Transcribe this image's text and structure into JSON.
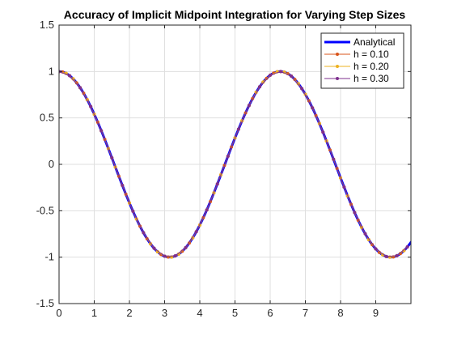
{
  "chart_data": {
    "type": "line",
    "title": "Accuracy of Implicit Midpoint Integration for Varying Step Sizes",
    "xlabel": "",
    "ylabel": "",
    "xlim": [
      0,
      10
    ],
    "ylim": [
      -1.5,
      1.5
    ],
    "xticks": [
      0,
      1,
      2,
      3,
      4,
      5,
      6,
      7,
      8,
      9
    ],
    "yticks": [
      -1.5,
      -1,
      -0.5,
      0,
      0.5,
      1,
      1.5
    ],
    "xtick_labels": [
      "0",
      "1",
      "2",
      "3",
      "4",
      "5",
      "6",
      "7",
      "8",
      "9"
    ],
    "ytick_labels": [
      "-1.5",
      "-1",
      "-0.5",
      "0",
      "0.5",
      "1",
      "1.5"
    ],
    "grid": true,
    "legend_position": "top-right",
    "series": [
      {
        "name": "Analytical",
        "color": "#0000ff",
        "marker": "none",
        "x": [
          0,
          0.5,
          1,
          1.5,
          2,
          2.5,
          3,
          3.1416,
          3.5,
          4,
          4.5,
          5,
          5.5,
          6,
          6.2832,
          6.5,
          7,
          7.5,
          8,
          8.5,
          9,
          9.4248,
          10
        ],
        "y": [
          1,
          0.878,
          0.54,
          0.071,
          -0.416,
          -0.801,
          -0.99,
          -1,
          -0.936,
          -0.654,
          -0.211,
          0.284,
          0.709,
          0.96,
          1,
          0.977,
          0.754,
          0.347,
          -0.146,
          -0.602,
          -0.911,
          -1,
          -0.839
        ]
      },
      {
        "name": "h = 0.10",
        "color": "#d95319",
        "marker": "dot",
        "x": [
          0,
          0.1,
          0.2,
          0.3,
          0.4,
          0.5,
          0.6,
          0.7,
          0.8,
          0.9,
          1,
          1.1,
          1.2,
          1.3,
          1.4,
          1.5,
          1.6,
          1.7,
          1.8,
          1.9,
          2,
          2.1,
          2.2,
          2.3,
          2.4,
          2.5,
          2.6,
          2.7,
          2.8,
          2.9,
          3,
          3.1,
          3.2,
          3.3,
          3.4,
          3.5,
          3.6,
          3.7,
          3.8,
          3.9,
          4,
          4.1,
          4.2,
          4.3,
          4.4,
          4.5,
          4.6,
          4.7,
          4.8,
          4.9,
          5,
          5.1,
          5.2,
          5.3,
          5.4,
          5.5,
          5.6,
          5.7,
          5.8,
          5.9,
          6,
          6.1,
          6.2,
          6.3,
          6.4,
          6.5,
          6.6,
          6.7,
          6.8,
          6.9,
          7,
          7.1,
          7.2,
          7.3,
          7.4,
          7.5,
          7.6,
          7.7,
          7.8,
          7.9,
          8,
          8.1,
          8.2,
          8.3,
          8.4,
          8.5,
          8.6,
          8.7,
          8.8,
          8.9,
          9,
          9.1,
          9.2,
          9.3,
          9.4,
          9.5,
          9.6,
          9.7,
          9.8,
          9.9
        ],
        "y": [
          1,
          0.995,
          0.98,
          0.955,
          0.921,
          0.878,
          0.825,
          0.765,
          0.697,
          0.622,
          0.54,
          0.454,
          0.362,
          0.268,
          0.17,
          0.071,
          -0.029,
          -0.129,
          -0.227,
          -0.323,
          -0.416,
          -0.505,
          -0.589,
          -0.666,
          -0.737,
          -0.801,
          -0.857,
          -0.904,
          -0.942,
          -0.971,
          -0.99,
          -0.999,
          -0.998,
          -0.987,
          -0.967,
          -0.936,
          -0.897,
          -0.848,
          -0.791,
          -0.726,
          -0.654,
          -0.575,
          -0.49,
          -0.401,
          -0.307,
          -0.211,
          -0.112,
          -0.012,
          0.087,
          0.187,
          0.284,
          0.378,
          0.469,
          0.554,
          0.635,
          0.709,
          0.776,
          0.835,
          0.886,
          0.927,
          0.96,
          0.983,
          0.997,
          1,
          0.993,
          0.977,
          0.951,
          0.915,
          0.869,
          0.815,
          0.754,
          0.685,
          0.608,
          0.526,
          0.439,
          0.347,
          0.252,
          0.155,
          0.055,
          -0.045,
          -0.146,
          -0.244,
          -0.34,
          -0.432,
          -0.52,
          -0.602,
          -0.679,
          -0.748,
          -0.811,
          -0.865,
          -0.911,
          -0.948,
          -0.975,
          -0.993,
          -1,
          -0.997,
          -0.984,
          -0.962,
          -0.93,
          -0.889
        ]
      },
      {
        "name": "h = 0.20",
        "color": "#edb120",
        "marker": "dot",
        "x": [
          0,
          0.2,
          0.4,
          0.6,
          0.8,
          1,
          1.2,
          1.4,
          1.6,
          1.8,
          2,
          2.2,
          2.4,
          2.6,
          2.8,
          3,
          3.2,
          3.4,
          3.6,
          3.8,
          4,
          4.2,
          4.4,
          4.6,
          4.8,
          5,
          5.2,
          5.4,
          5.6,
          5.8,
          6,
          6.2,
          6.4,
          6.6,
          6.8,
          7,
          7.2,
          7.4,
          7.6,
          7.8,
          8,
          8.2,
          8.4,
          8.6,
          8.8,
          9,
          9.2,
          9.4,
          9.6,
          9.8
        ],
        "y": [
          1,
          0.98,
          0.921,
          0.825,
          0.697,
          0.54,
          0.362,
          0.17,
          -0.029,
          -0.227,
          -0.416,
          -0.589,
          -0.737,
          -0.857,
          -0.942,
          -0.99,
          -0.998,
          -0.967,
          -0.897,
          -0.791,
          -0.654,
          -0.49,
          -0.307,
          -0.112,
          0.087,
          0.284,
          0.469,
          0.635,
          0.776,
          0.886,
          0.96,
          0.997,
          0.993,
          0.951,
          0.869,
          0.754,
          0.608,
          0.439,
          0.252,
          0.055,
          -0.146,
          -0.34,
          -0.52,
          -0.679,
          -0.811,
          -0.911,
          -0.975,
          -1,
          -0.984,
          -0.93
        ]
      },
      {
        "name": "h = 0.30",
        "color": "#7e2f8e",
        "marker": "dot",
        "x": [
          0,
          0.3,
          0.6,
          0.9,
          1.2,
          1.5,
          1.8,
          2.1,
          2.4,
          2.7,
          3,
          3.3,
          3.6,
          3.9,
          4.2,
          4.5,
          4.8,
          5.1,
          5.4,
          5.7,
          6,
          6.3,
          6.6,
          6.9,
          7.2,
          7.5,
          7.8,
          8.1,
          8.4,
          8.7,
          9,
          9.3,
          9.6,
          9.9
        ],
        "y": [
          1,
          0.955,
          0.825,
          0.622,
          0.362,
          0.071,
          -0.227,
          -0.505,
          -0.737,
          -0.904,
          -0.99,
          -0.987,
          -0.897,
          -0.726,
          -0.49,
          -0.211,
          0.087,
          0.378,
          0.635,
          0.835,
          0.96,
          1,
          0.951,
          0.815,
          0.608,
          0.347,
          0.055,
          -0.244,
          -0.52,
          -0.748,
          -0.911,
          -0.993,
          -0.984,
          -0.889
        ]
      }
    ]
  }
}
